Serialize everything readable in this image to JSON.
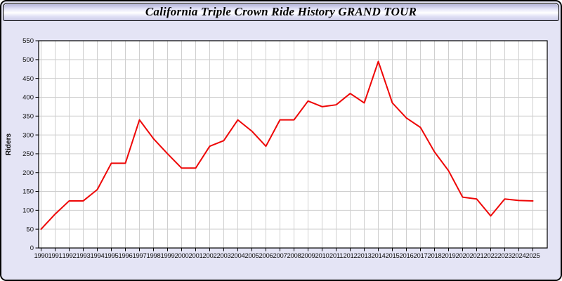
{
  "window": {
    "title": "California Triple Crown Ride History GRAND TOUR"
  },
  "chart_data": {
    "type": "line",
    "title": "California Triple Crown Ride History GRAND TOUR",
    "xlabel": "",
    "ylabel": "Riders",
    "ylim": [
      0,
      550
    ],
    "y_ticks": [
      0,
      50,
      100,
      150,
      200,
      250,
      300,
      350,
      400,
      450,
      500,
      550
    ],
    "grid": true,
    "legend": "none",
    "x": [
      1990,
      1991,
      1992,
      1993,
      1994,
      1995,
      1996,
      1997,
      1998,
      1999,
      2000,
      2001,
      2002,
      2003,
      2004,
      2005,
      2006,
      2007,
      2008,
      2009,
      2010,
      2011,
      2012,
      2013,
      2014,
      2015,
      2016,
      2017,
      2018,
      2019,
      2020,
      2021,
      2022,
      2023,
      2024,
      2025
    ],
    "series": [
      {
        "name": "Riders",
        "values": [
          50,
          90,
          125,
          125,
          155,
          225,
          225,
          340,
          290,
          250,
          212,
          212,
          270,
          285,
          340,
          310,
          270,
          340,
          340,
          390,
          375,
          380,
          410,
          385,
          495,
          385,
          345,
          320,
          255,
          205,
          135,
          130,
          85,
          130,
          126,
          125
        ]
      }
    ]
  },
  "colors": {
    "panel_bg": "#e4e4f5",
    "plot_bg": "#ffffff",
    "gridline": "#cfcfcf",
    "axis": "#000000",
    "tick_label": "#111111",
    "line": "#ee0606"
  }
}
